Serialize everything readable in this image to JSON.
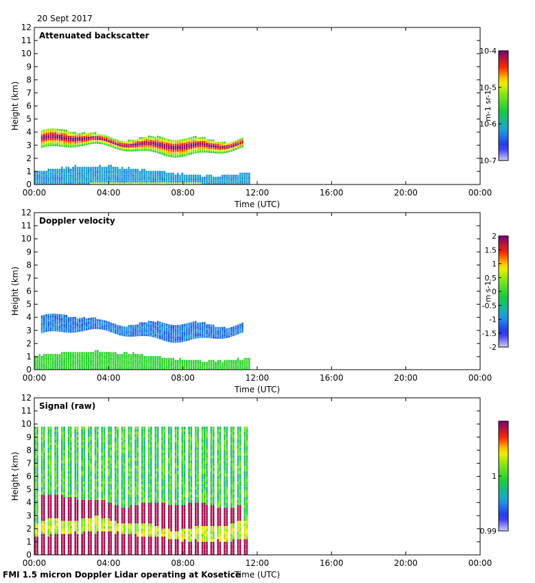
{
  "date": "20 Sept 2017",
  "footer": "FMI 1.5 micron Doppler Lidar operating at Kosetice",
  "colors": {
    "axis": "#000000",
    "background": "#ffffff"
  },
  "chart_data": [
    {
      "type": "heatmap",
      "title": "Attenuated backscatter",
      "xlabel": "Time (UTC)",
      "ylabel": "Height (km)",
      "x_ticks": [
        "00:00",
        "04:00",
        "08:00",
        "12:00",
        "16:00",
        "20:00",
        "00:00"
      ],
      "y_ticks": [
        "0",
        "1",
        "2",
        "3",
        "4",
        "5",
        "6",
        "7",
        "8",
        "9",
        "10",
        "11",
        "12"
      ],
      "xlim_hours": [
        0,
        24
      ],
      "ylim_km": [
        0,
        12
      ],
      "data_extent_hours": [
        0,
        11.6
      ],
      "colorbar": {
        "unit": "m-1 sr-1",
        "scale": "log",
        "range": [
          1e-07,
          0.0001
        ],
        "ticks": [
          "10-7",
          "10-6",
          "10-5",
          "10-4"
        ]
      },
      "features": [
        {
          "name": "cloud layer",
          "start_h": 0.3,
          "end_h": 11.2,
          "base_km": 2.5,
          "top_km": 4.6
        },
        {
          "name": "boundary layer",
          "start_h": 0.0,
          "end_h": 11.6,
          "base_km": 0.0,
          "top_km": 1.3
        }
      ]
    },
    {
      "type": "heatmap",
      "title": "Doppler velocity",
      "xlabel": "Time (UTC)",
      "ylabel": "Height (km)",
      "x_ticks": [
        "00:00",
        "04:00",
        "08:00",
        "12:00",
        "16:00",
        "20:00",
        "00:00"
      ],
      "y_ticks": [
        "0",
        "1",
        "2",
        "3",
        "4",
        "5",
        "6",
        "7",
        "8",
        "9",
        "10",
        "11",
        "12"
      ],
      "xlim_hours": [
        0,
        24
      ],
      "ylim_km": [
        0,
        12
      ],
      "data_extent_hours": [
        0,
        11.6
      ],
      "colorbar": {
        "unit": "m s-1",
        "scale": "linear",
        "range": [
          -2,
          2
        ],
        "ticks": [
          "-2",
          "-1.5",
          "-1",
          "-0.5",
          "0",
          "0.5",
          "1",
          "1.5",
          "2"
        ]
      }
    },
    {
      "type": "heatmap",
      "title": "Signal (raw)",
      "xlabel": "Time (UTC)",
      "ylabel": "Height (km)",
      "x_ticks": [
        "00:00",
        "04:00",
        "08:00",
        "12:00",
        "16:00",
        "20:00",
        "00:00"
      ],
      "y_ticks": [
        "0",
        "1",
        "2",
        "3",
        "4",
        "5",
        "6",
        "7",
        "8",
        "9",
        "10",
        "11",
        "12"
      ],
      "xlim_hours": [
        0,
        24
      ],
      "ylim_km": [
        0,
        12
      ],
      "data_extent_hours": [
        0,
        11.6
      ],
      "data_top_km": 9.6,
      "colorbar": {
        "unit": "",
        "scale": "linear",
        "range": [
          0.99,
          1.01
        ],
        "ticks": [
          "0.99",
          "1"
        ]
      }
    }
  ]
}
